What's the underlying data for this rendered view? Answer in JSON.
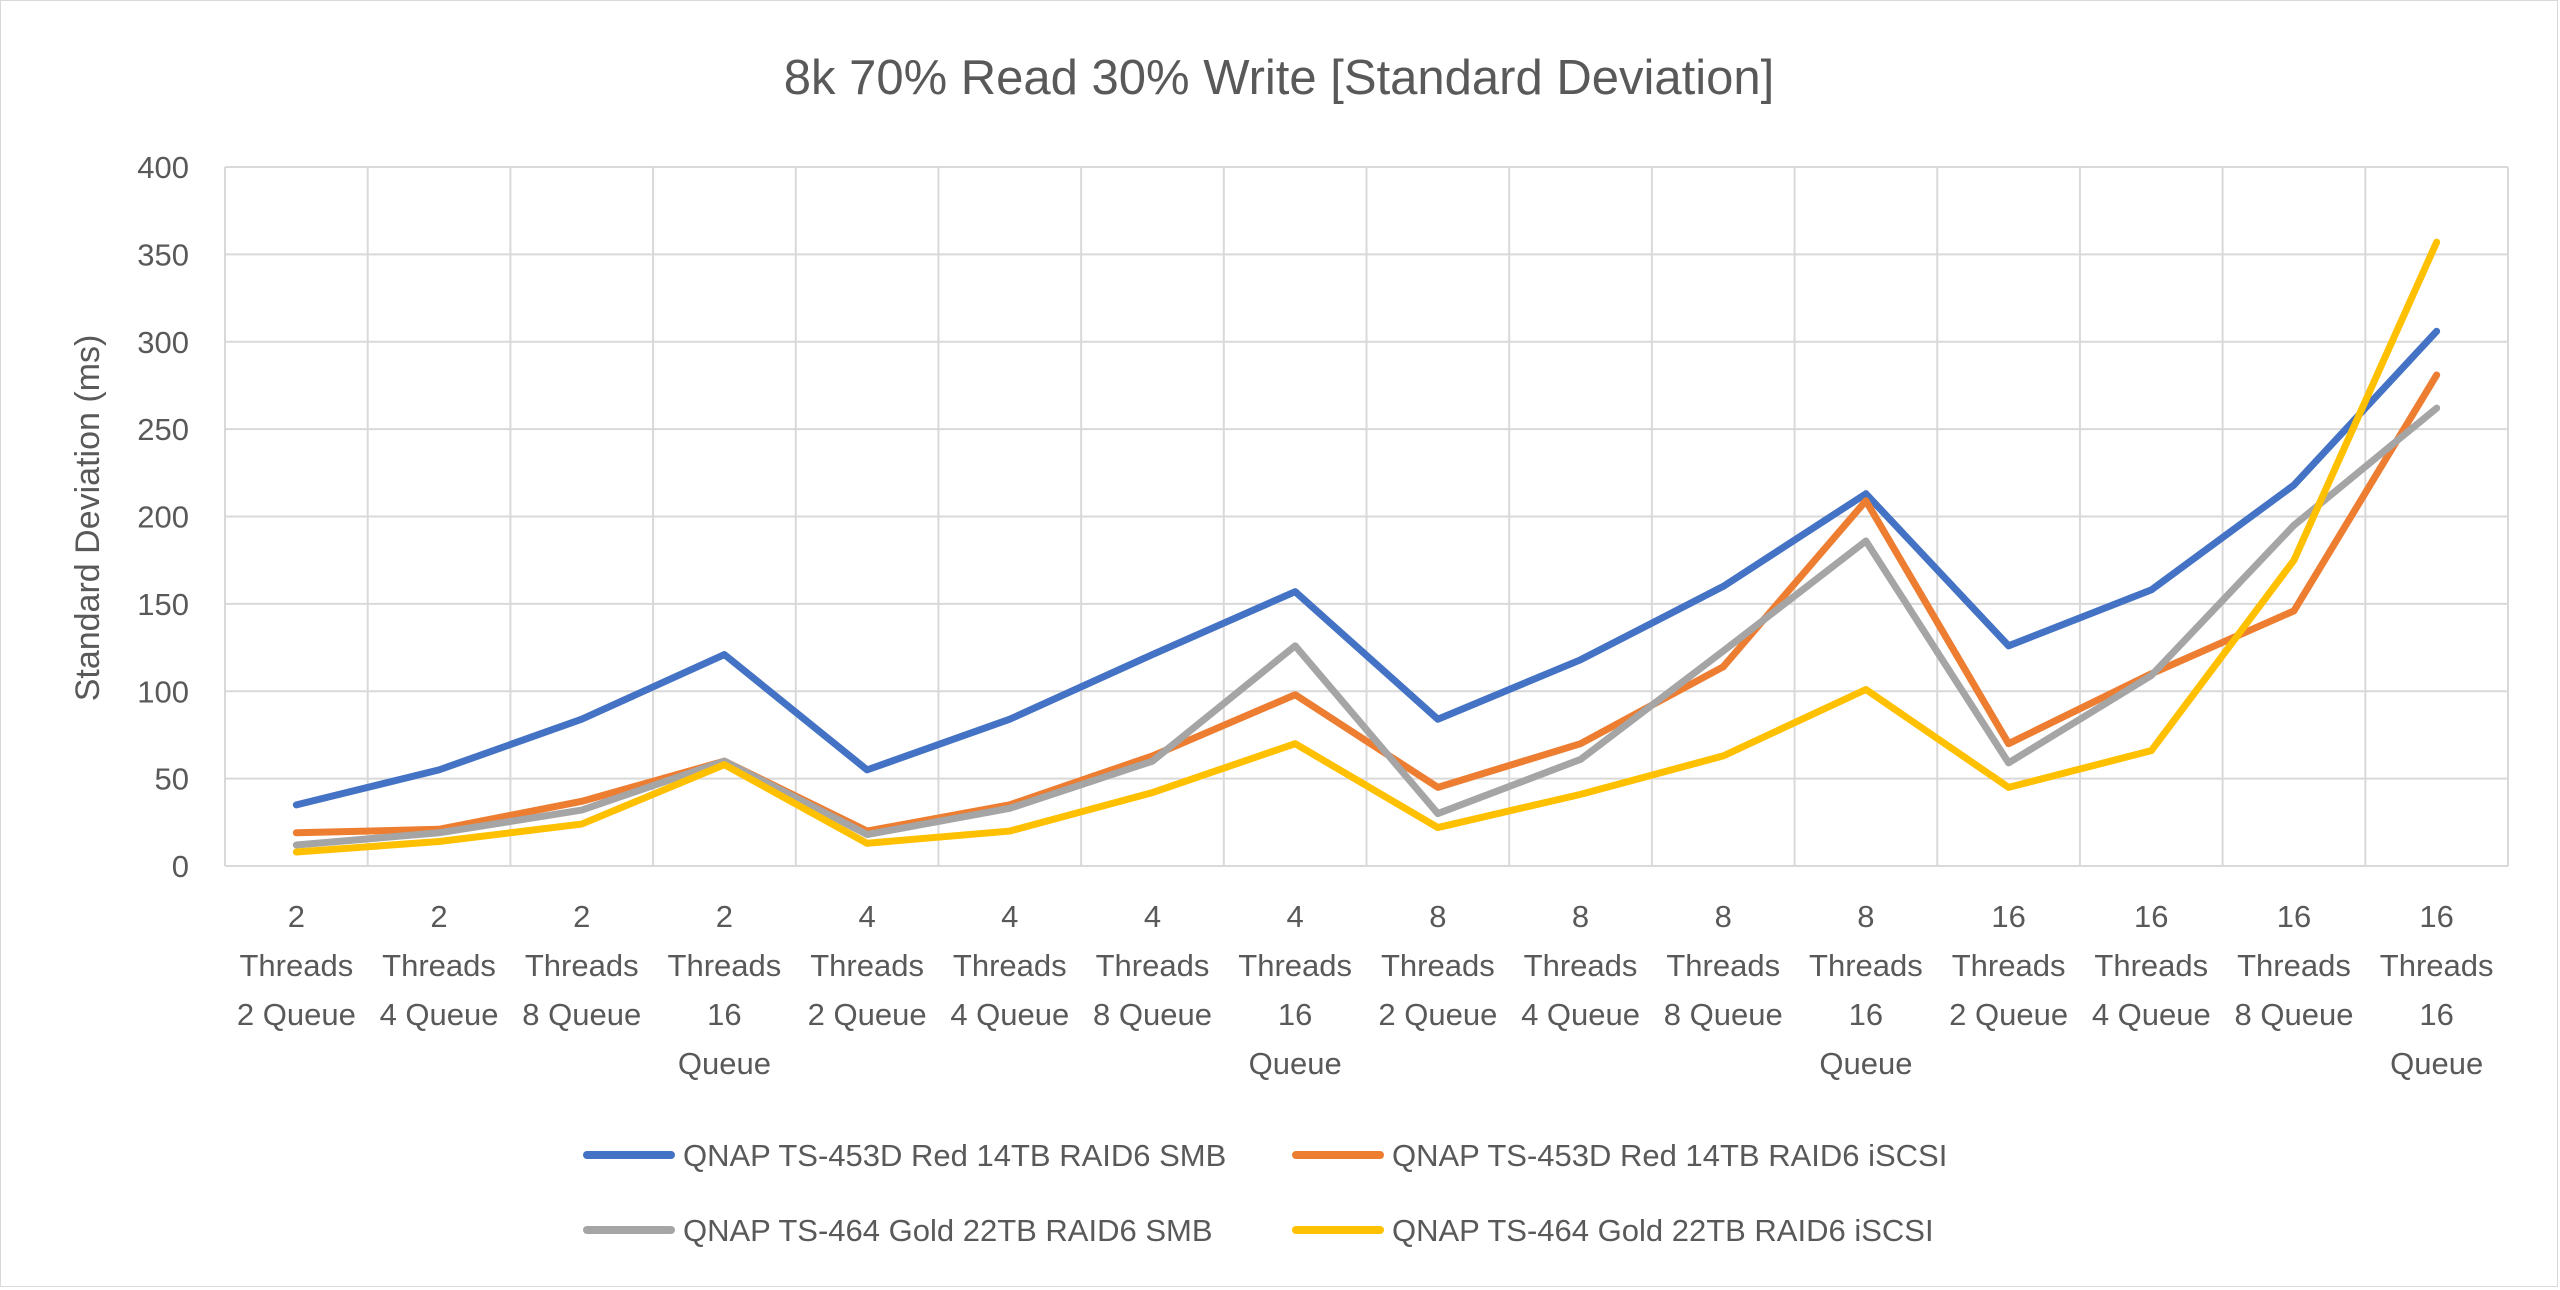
{
  "chart_data": {
    "type": "line",
    "title": "8k 70% Read 30% Write [Standard Deviation]",
    "xlabel": "",
    "ylabel": "Standard Deviation (ms)",
    "ylim": [
      0,
      400
    ],
    "yticks": [
      0,
      50,
      100,
      150,
      200,
      250,
      300,
      350,
      400
    ],
    "grid": true,
    "legend_position": "bottom",
    "categories": [
      "2 Threads 2 Queue",
      "2 Threads 4 Queue",
      "2 Threads 8 Queue",
      "2 Threads 16 Queue",
      "4 Threads 2 Queue",
      "4 Threads 4 Queue",
      "4 Threads 8 Queue",
      "4 Threads 16 Queue",
      "8 Threads 2 Queue",
      "8 Threads 4 Queue",
      "8 Threads 8 Queue",
      "8 Threads 16 Queue",
      "16 Threads 2 Queue",
      "16 Threads 4 Queue",
      "16 Threads 8 Queue",
      "16 Threads 16 Queue"
    ],
    "category_lines": [
      [
        "2",
        "Threads",
        "2 Queue"
      ],
      [
        "2",
        "Threads",
        "4 Queue"
      ],
      [
        "2",
        "Threads",
        "8 Queue"
      ],
      [
        "2",
        "Threads",
        "16",
        "Queue"
      ],
      [
        "4",
        "Threads",
        "2 Queue"
      ],
      [
        "4",
        "Threads",
        "4 Queue"
      ],
      [
        "4",
        "Threads",
        "8 Queue"
      ],
      [
        "4",
        "Threads",
        "16",
        "Queue"
      ],
      [
        "8",
        "Threads",
        "2 Queue"
      ],
      [
        "8",
        "Threads",
        "4 Queue"
      ],
      [
        "8",
        "Threads",
        "8 Queue"
      ],
      [
        "8",
        "Threads",
        "16",
        "Queue"
      ],
      [
        "16",
        "Threads",
        "2 Queue"
      ],
      [
        "16",
        "Threads",
        "4 Queue"
      ],
      [
        "16",
        "Threads",
        "8 Queue"
      ],
      [
        "16",
        "Threads",
        "16",
        "Queue"
      ]
    ],
    "series": [
      {
        "name": "QNAP TS-453D Red 14TB RAID6 SMB",
        "color": "#4472C4",
        "values": [
          35,
          55,
          84,
          121,
          55,
          84,
          121,
          157,
          84,
          118,
          160,
          213,
          126,
          158,
          218,
          306
        ]
      },
      {
        "name": "QNAP TS-453D Red 14TB RAID6 iSCSI",
        "color": "#ED7D31",
        "values": [
          19,
          21,
          37,
          60,
          20,
          35,
          63,
          98,
          45,
          70,
          114,
          209,
          70,
          110,
          146,
          281
        ]
      },
      {
        "name": "QNAP TS-464 Gold 22TB RAID6 SMB",
        "color": "#A5A5A5",
        "values": [
          12,
          19,
          32,
          60,
          18,
          33,
          60,
          126,
          30,
          61,
          123,
          186,
          59,
          109,
          195,
          262
        ]
      },
      {
        "name": "QNAP TS-464 Gold 22TB RAID6 iSCSI",
        "color": "#FFC000",
        "values": [
          8,
          14,
          24,
          58,
          13,
          20,
          42,
          70,
          22,
          41,
          63,
          101,
          45,
          66,
          175,
          357
        ]
      }
    ]
  }
}
